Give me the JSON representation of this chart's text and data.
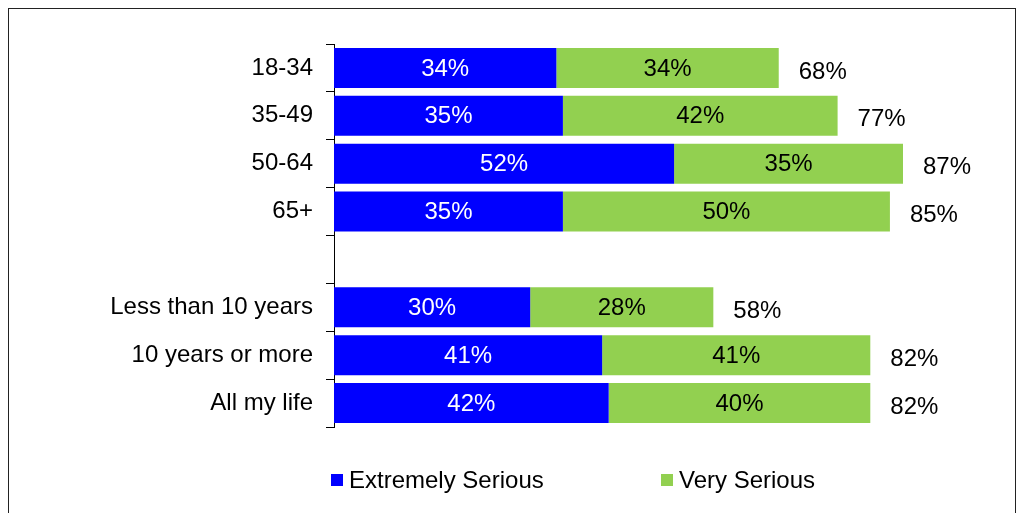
{
  "chart_data": {
    "type": "bar",
    "orientation": "horizontal",
    "stacked": true,
    "categories": [
      "18-34",
      "35-49",
      "50-64",
      "65+",
      null,
      "Less than 10 years",
      "10 years or more",
      "All my life"
    ],
    "series": [
      {
        "name": "Extremely Serious",
        "color": "#0000ff",
        "values": [
          34,
          35,
          52,
          35,
          null,
          30,
          41,
          42
        ],
        "value_labels": [
          "34%",
          "35%",
          "52%",
          "35%",
          null,
          "30%",
          "41%",
          "42%"
        ]
      },
      {
        "name": "Very Serious",
        "color": "#92d050",
        "values": [
          34,
          42,
          35,
          50,
          null,
          28,
          41,
          40
        ],
        "value_labels": [
          "34%",
          "42%",
          "35%",
          "50%",
          null,
          "28%",
          "41%",
          "40%"
        ]
      }
    ],
    "totals": [
      "68%",
      "77%",
      "87%",
      "85%",
      null,
      "58%",
      "82%",
      "82%"
    ],
    "tick_labels": "y",
    "legend": "bottom"
  }
}
